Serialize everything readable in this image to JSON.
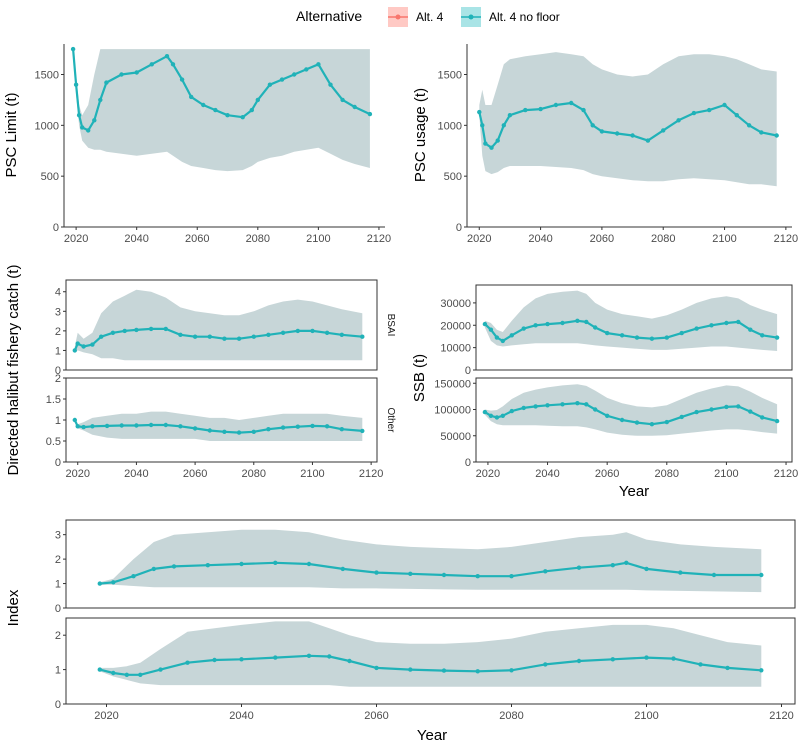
{
  "legend": {
    "title": "Alternative",
    "items": [
      {
        "label": "Alt. 4",
        "color": "#F8766D",
        "fill": "#FFC9C4"
      },
      {
        "label": "Alt. 4 no floor",
        "color": "#20B2B8",
        "fill": "#A9E4E6"
      }
    ]
  },
  "colors": {
    "ribbon": "#C7D6D8",
    "line": "#20B2B8",
    "frame": "#333333"
  },
  "chart_data": [
    {
      "type": "line",
      "panel": "psc-limit",
      "xlabel": "",
      "ylabel": "PSC Limit (t)",
      "xlim": [
        2016,
        2122
      ],
      "ylim": [
        0,
        1800
      ],
      "xticks": [
        2020,
        2040,
        2060,
        2080,
        2100,
        2120
      ],
      "yticks": [
        0,
        500,
        1000,
        1500
      ],
      "series": [
        {
          "x": [
            2019,
            2020,
            2021,
            2022,
            2024,
            2026,
            2028,
            2030,
            2035,
            2040,
            2045,
            2050,
            2052,
            2055,
            2058,
            2062,
            2066,
            2070,
            2075,
            2078,
            2080,
            2084,
            2088,
            2092,
            2096,
            2100,
            2104,
            2108,
            2112,
            2117
          ],
          "y": [
            1750,
            1400,
            1100,
            980,
            950,
            1050,
            1250,
            1420,
            1500,
            1520,
            1600,
            1680,
            1600,
            1450,
            1280,
            1200,
            1150,
            1100,
            1080,
            1150,
            1250,
            1400,
            1450,
            1500,
            1550,
            1600,
            1400,
            1250,
            1180,
            1110
          ],
          "lower": [
            1750,
            1300,
            1000,
            850,
            780,
            760,
            760,
            740,
            720,
            700,
            720,
            740,
            700,
            640,
            600,
            580,
            560,
            550,
            560,
            600,
            640,
            680,
            700,
            740,
            760,
            780,
            720,
            660,
            620,
            580
          ],
          "upper": [
            1750,
            1500,
            1200,
            1100,
            1200,
            1500,
            1750,
            1750,
            1750,
            1750,
            1750,
            1750,
            1750,
            1750,
            1750,
            1750,
            1750,
            1750,
            1750,
            1750,
            1750,
            1750,
            1750,
            1750,
            1750,
            1750,
            1750,
            1750,
            1750,
            1750
          ]
        }
      ]
    },
    {
      "type": "line",
      "panel": "psc-usage",
      "xlabel": "",
      "ylabel": "PSC usage (t)",
      "xlim": [
        2016,
        2122
      ],
      "ylim": [
        0,
        1800
      ],
      "xticks": [
        2020,
        2040,
        2060,
        2080,
        2100,
        2120
      ],
      "yticks": [
        0,
        500,
        1000,
        1500
      ],
      "series": [
        {
          "x": [
            2020,
            2021,
            2022,
            2024,
            2026,
            2028,
            2030,
            2035,
            2040,
            2045,
            2050,
            2054,
            2057,
            2060,
            2065,
            2070,
            2075,
            2080,
            2085,
            2090,
            2095,
            2100,
            2104,
            2108,
            2112,
            2117
          ],
          "y": [
            1130,
            1000,
            820,
            780,
            850,
            1000,
            1100,
            1150,
            1160,
            1200,
            1220,
            1150,
            1000,
            940,
            920,
            900,
            850,
            950,
            1050,
            1120,
            1150,
            1200,
            1100,
            1000,
            930,
            900
          ],
          "lower": [
            1100,
            700,
            550,
            520,
            540,
            580,
            600,
            600,
            600,
            590,
            580,
            560,
            520,
            500,
            480,
            460,
            450,
            450,
            470,
            480,
            470,
            460,
            440,
            420,
            420,
            400
          ],
          "upper": [
            1200,
            1350,
            1200,
            1200,
            1400,
            1600,
            1650,
            1680,
            1700,
            1720,
            1700,
            1680,
            1600,
            1550,
            1500,
            1480,
            1500,
            1600,
            1680,
            1700,
            1700,
            1680,
            1650,
            1600,
            1550,
            1530
          ]
        }
      ]
    },
    {
      "type": "line",
      "panel": "halibut-bsai",
      "strip": "BSAI",
      "xlabel": "",
      "ylabel": "Directed halibut fishery catch (t)",
      "xlim": [
        2016,
        2122
      ],
      "ylim": [
        0,
        4.6
      ],
      "yticks": [
        0,
        1,
        2,
        3,
        4
      ],
      "series": [
        {
          "x": [
            2019,
            2020,
            2022,
            2025,
            2028,
            2032,
            2036,
            2040,
            2045,
            2050,
            2055,
            2060,
            2065,
            2070,
            2075,
            2080,
            2085,
            2090,
            2095,
            2100,
            2105,
            2110,
            2117
          ],
          "y": [
            1.0,
            1.35,
            1.2,
            1.3,
            1.7,
            1.9,
            2.0,
            2.05,
            2.1,
            2.1,
            1.8,
            1.7,
            1.7,
            1.6,
            1.6,
            1.7,
            1.8,
            1.9,
            2.0,
            2.0,
            1.9,
            1.8,
            1.7
          ],
          "lower": [
            0.9,
            1.0,
            0.9,
            0.8,
            0.6,
            0.6,
            0.5,
            0.5,
            0.5,
            0.5,
            0.5,
            0.5,
            0.5,
            0.5,
            0.5,
            0.5,
            0.5,
            0.5,
            0.5,
            0.5,
            0.5,
            0.5,
            0.5
          ],
          "upper": [
            1.2,
            1.9,
            1.6,
            1.9,
            2.9,
            3.5,
            3.8,
            4.1,
            4.0,
            3.7,
            3.2,
            3.0,
            2.9,
            2.8,
            2.8,
            3.0,
            3.3,
            3.5,
            3.6,
            3.5,
            3.3,
            3.1,
            2.9
          ]
        }
      ]
    },
    {
      "type": "line",
      "panel": "halibut-other",
      "strip": "Other",
      "xlabel": "",
      "ylabel": "",
      "xlim": [
        2016,
        2122
      ],
      "ylim": [
        0,
        2.0
      ],
      "xticks": [
        2020,
        2040,
        2060,
        2080,
        2100,
        2120
      ],
      "yticks": [
        0.0,
        0.5,
        1.0,
        1.5,
        2.0
      ],
      "series": [
        {
          "x": [
            2019,
            2020,
            2022,
            2025,
            2030,
            2035,
            2040,
            2045,
            2050,
            2055,
            2060,
            2065,
            2070,
            2075,
            2080,
            2085,
            2090,
            2095,
            2100,
            2105,
            2110,
            2117
          ],
          "y": [
            1.0,
            0.85,
            0.83,
            0.85,
            0.86,
            0.87,
            0.87,
            0.88,
            0.88,
            0.85,
            0.8,
            0.75,
            0.72,
            0.7,
            0.72,
            0.78,
            0.82,
            0.84,
            0.86,
            0.85,
            0.78,
            0.74
          ],
          "lower": [
            0.95,
            0.8,
            0.75,
            0.65,
            0.58,
            0.55,
            0.55,
            0.55,
            0.55,
            0.55,
            0.55,
            0.5,
            0.5,
            0.5,
            0.5,
            0.5,
            0.5,
            0.5,
            0.5,
            0.5,
            0.5,
            0.5
          ],
          "upper": [
            1.05,
            0.9,
            0.95,
            1.05,
            1.1,
            1.15,
            1.15,
            1.2,
            1.2,
            1.15,
            1.1,
            1.05,
            1.05,
            1.0,
            1.05,
            1.1,
            1.15,
            1.15,
            1.15,
            1.15,
            1.1,
            1.05
          ]
        }
      ]
    },
    {
      "type": "line",
      "panel": "ssb-1",
      "xlabel": "",
      "ylabel": "SSB (t)",
      "xlim": [
        2016,
        2122
      ],
      "ylim": [
        0,
        38000
      ],
      "yticks": [
        0,
        10000,
        20000,
        30000
      ],
      "series": [
        {
          "x": [
            2019,
            2021,
            2023,
            2025,
            2028,
            2032,
            2036,
            2040,
            2045,
            2050,
            2053,
            2056,
            2060,
            2065,
            2070,
            2075,
            2080,
            2085,
            2090,
            2095,
            2100,
            2104,
            2108,
            2112,
            2117
          ],
          "y": [
            20500,
            18000,
            14500,
            13000,
            15500,
            18500,
            20000,
            20500,
            21000,
            22000,
            21500,
            19000,
            16500,
            15500,
            14500,
            14000,
            14500,
            16500,
            18500,
            20000,
            21000,
            21500,
            18000,
            15500,
            14500
          ],
          "lower": [
            19000,
            13000,
            11000,
            10500,
            11000,
            11500,
            12000,
            12000,
            12000,
            12000,
            11500,
            11000,
            10500,
            10000,
            9500,
            9000,
            9000,
            9500,
            10000,
            10500,
            10500,
            10000,
            9500,
            9000,
            8500
          ],
          "upper": [
            22000,
            21000,
            18000,
            17000,
            22000,
            28000,
            32000,
            34000,
            35000,
            35500,
            34000,
            30000,
            27000,
            25000,
            24000,
            23000,
            24500,
            27000,
            30000,
            32000,
            33000,
            32000,
            29000,
            27000,
            25000
          ]
        }
      ]
    },
    {
      "type": "line",
      "panel": "ssb-2",
      "xlabel": "Year",
      "ylabel": "",
      "xlim": [
        2016,
        2122
      ],
      "ylim": [
        0,
        160000
      ],
      "xticks": [
        2020,
        2040,
        2060,
        2080,
        2100,
        2120
      ],
      "yticks": [
        0,
        50000,
        100000,
        150000
      ],
      "series": [
        {
          "x": [
            2019,
            2021,
            2023,
            2025,
            2028,
            2032,
            2036,
            2040,
            2045,
            2050,
            2053,
            2056,
            2060,
            2065,
            2070,
            2075,
            2080,
            2085,
            2090,
            2095,
            2100,
            2104,
            2108,
            2112,
            2117
          ],
          "y": [
            95000,
            88000,
            85000,
            88000,
            97000,
            103000,
            106000,
            108000,
            110000,
            112000,
            110000,
            100000,
            88000,
            80000,
            75000,
            72000,
            76000,
            86000,
            95000,
            100000,
            105000,
            106000,
            96000,
            85000,
            78000
          ],
          "lower": [
            90000,
            78000,
            72000,
            70000,
            70000,
            70000,
            70000,
            69000,
            68000,
            68000,
            66000,
            62000,
            56000,
            52000,
            50000,
            50000,
            51000,
            54000,
            57000,
            60000,
            62000,
            62000,
            60000,
            57000,
            54000
          ],
          "upper": [
            100000,
            98000,
            99000,
            106000,
            120000,
            132000,
            138000,
            142000,
            146000,
            148000,
            145000,
            136000,
            122000,
            112000,
            106000,
            104000,
            108000,
            120000,
            132000,
            140000,
            146000,
            144000,
            134000,
            122000,
            110000
          ]
        }
      ]
    },
    {
      "type": "line",
      "panel": "index-1",
      "xlabel": "",
      "ylabel": "Index",
      "xlim": [
        2014,
        2122
      ],
      "ylim": [
        0,
        3.6
      ],
      "yticks": [
        0,
        1,
        2,
        3
      ],
      "series": [
        {
          "x": [
            2019,
            2021,
            2024,
            2027,
            2030,
            2035,
            2040,
            2045,
            2050,
            2055,
            2060,
            2065,
            2070,
            2075,
            2080,
            2085,
            2090,
            2095,
            2097,
            2100,
            2105,
            2110,
            2117
          ],
          "y": [
            1.0,
            1.05,
            1.3,
            1.6,
            1.7,
            1.75,
            1.8,
            1.85,
            1.8,
            1.6,
            1.45,
            1.4,
            1.35,
            1.3,
            1.3,
            1.5,
            1.65,
            1.75,
            1.85,
            1.6,
            1.45,
            1.35,
            1.35
          ],
          "lower": [
            0.95,
            0.95,
            0.9,
            0.85,
            0.85,
            0.85,
            0.85,
            0.85,
            0.85,
            0.8,
            0.8,
            0.78,
            0.76,
            0.75,
            0.75,
            0.75,
            0.75,
            0.75,
            0.75,
            0.72,
            0.7,
            0.68,
            0.65
          ],
          "upper": [
            1.05,
            1.2,
            2.0,
            2.7,
            3.0,
            3.1,
            3.2,
            3.2,
            3.1,
            2.8,
            2.6,
            2.5,
            2.45,
            2.4,
            2.5,
            2.7,
            2.9,
            3.0,
            3.1,
            2.8,
            2.6,
            2.5,
            2.4
          ]
        }
      ]
    },
    {
      "type": "line",
      "panel": "index-2",
      "xlabel": "Year",
      "ylabel": "",
      "xlim": [
        2014,
        2122
      ],
      "ylim": [
        0,
        2.5
      ],
      "xticks": [
        2020,
        2040,
        2060,
        2080,
        2100,
        2120
      ],
      "yticks": [
        0,
        1,
        2
      ],
      "series": [
        {
          "x": [
            2019,
            2021,
            2023,
            2025,
            2028,
            2032,
            2036,
            2040,
            2045,
            2050,
            2053,
            2056,
            2060,
            2065,
            2070,
            2075,
            2080,
            2085,
            2090,
            2095,
            2100,
            2104,
            2108,
            2112,
            2117
          ],
          "y": [
            1.0,
            0.9,
            0.85,
            0.85,
            1.0,
            1.2,
            1.28,
            1.3,
            1.35,
            1.4,
            1.38,
            1.25,
            1.05,
            1.0,
            0.97,
            0.95,
            0.98,
            1.15,
            1.25,
            1.3,
            1.35,
            1.32,
            1.15,
            1.05,
            0.98
          ],
          "lower": [
            0.95,
            0.8,
            0.7,
            0.6,
            0.55,
            0.55,
            0.55,
            0.55,
            0.55,
            0.55,
            0.55,
            0.5,
            0.5,
            0.5,
            0.5,
            0.5,
            0.5,
            0.5,
            0.5,
            0.5,
            0.5,
            0.5,
            0.5,
            0.5,
            0.5
          ],
          "upper": [
            1.05,
            1.05,
            1.1,
            1.2,
            1.6,
            2.1,
            2.2,
            2.3,
            2.4,
            2.4,
            2.2,
            2.0,
            1.8,
            1.75,
            1.75,
            1.8,
            1.9,
            2.1,
            2.2,
            2.3,
            2.3,
            2.2,
            2.0,
            1.8,
            1.7
          ]
        }
      ]
    }
  ]
}
